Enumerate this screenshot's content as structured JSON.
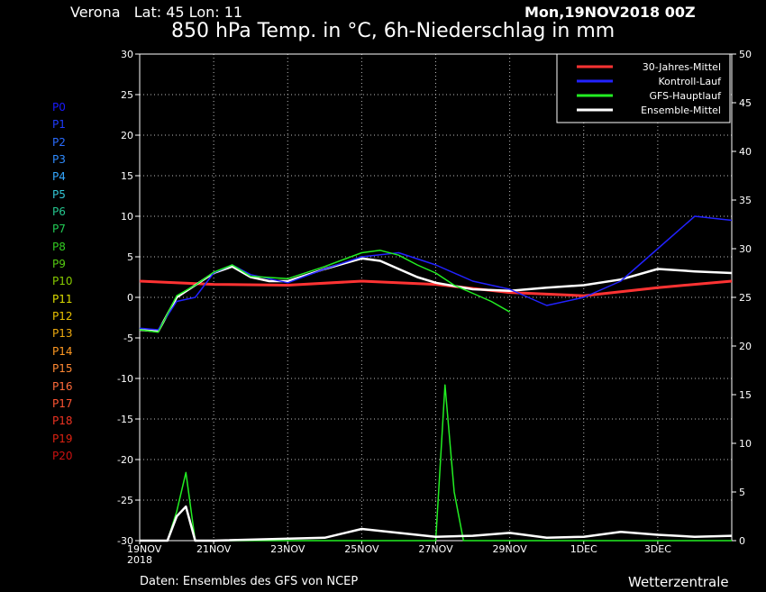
{
  "header": {
    "location": "Verona   Lat: 45 Lon: 11",
    "run_date": "Mon,19NOV2018 00Z",
    "title": "850 hPa Temp. in °C, 6h-Niederschlag in mm"
  },
  "footer": {
    "source": "Daten: Ensembles des GFS von NCEP",
    "brand": "Wetterzentrale"
  },
  "members": [
    {
      "label": "P0",
      "color": "#1a1aff"
    },
    {
      "label": "P1",
      "color": "#1f3cff"
    },
    {
      "label": "P2",
      "color": "#2a6cff"
    },
    {
      "label": "P3",
      "color": "#2f8cff"
    },
    {
      "label": "P4",
      "color": "#35a8ff"
    },
    {
      "label": "P5",
      "color": "#33c8d8"
    },
    {
      "label": "P6",
      "color": "#25c890"
    },
    {
      "label": "P7",
      "color": "#22cc55"
    },
    {
      "label": "P8",
      "color": "#33cc22"
    },
    {
      "label": "P9",
      "color": "#55cc11"
    },
    {
      "label": "P10",
      "color": "#88cc00"
    },
    {
      "label": "P11",
      "color": "#dddd00"
    },
    {
      "label": "P12",
      "color": "#e8c000"
    },
    {
      "label": "P13",
      "color": "#eeaa10"
    },
    {
      "label": "P14",
      "color": "#ff9922"
    },
    {
      "label": "P15",
      "color": "#ff8833"
    },
    {
      "label": "P16",
      "color": "#ff6a3a"
    },
    {
      "label": "P17",
      "color": "#ff5533"
    },
    {
      "label": "P18",
      "color": "#ee3322"
    },
    {
      "label": "P19",
      "color": "#dd2211"
    },
    {
      "label": "P20",
      "color": "#cc1111"
    }
  ],
  "chart_data": {
    "type": "line",
    "x_tick_labels": [
      "19NOV\n2018",
      "21NOV",
      "23NOV",
      "25NOV",
      "27NOV",
      "29NOV",
      "1DEC",
      "3DEC"
    ],
    "x_tick_days": [
      0,
      2,
      4,
      6,
      8,
      10,
      12,
      14
    ],
    "xlim_days": [
      0,
      16
    ],
    "y_left": {
      "ylim": [
        -30,
        30
      ],
      "ticks": [
        -30,
        -25,
        -20,
        -15,
        -10,
        -5,
        0,
        5,
        10,
        15,
        20,
        25,
        30
      ]
    },
    "y_right": {
      "ylim": [
        0,
        50
      ],
      "ticks": [
        0,
        5,
        10,
        15,
        20,
        25,
        30,
        35,
        40,
        45,
        50
      ]
    },
    "grid": true,
    "legend_position": "top-right",
    "legend": [
      {
        "name": "30-Jahres-Mittel",
        "color": "#ff3333"
      },
      {
        "name": "Kontroll-Lauf",
        "color": "#2222ff"
      },
      {
        "name": "GFS-Hauptlauf",
        "color": "#22ee22"
      },
      {
        "name": "Ensemble-Mittel",
        "color": "#ffffff"
      }
    ],
    "series": [
      {
        "name": "30-Jahres-Mittel",
        "color": "#ff3333",
        "axis": "left",
        "x": [
          0,
          2,
          4,
          6,
          8,
          10,
          12,
          14,
          16
        ],
        "values": [
          2,
          1.6,
          1.5,
          2,
          1.6,
          0.6,
          0.2,
          1.2,
          2
        ]
      },
      {
        "name": "Ensemble-Mittel",
        "color": "#ffffff",
        "axis": "left",
        "x": [
          0,
          0.5,
          1,
          1.5,
          2,
          2.5,
          3,
          3.5,
          4,
          5,
          6,
          6.5,
          7,
          7.5,
          8,
          9,
          10,
          11,
          12,
          13,
          14,
          15,
          16
        ],
        "values": [
          -4,
          -4.2,
          0,
          1.5,
          3,
          3.8,
          2.5,
          2,
          2,
          3.5,
          4.8,
          4.5,
          3.5,
          2.5,
          1.8,
          1,
          0.8,
          1.2,
          1.5,
          2.2,
          3.5,
          3.2,
          3
        ]
      },
      {
        "name": "Kontroll-Lauf",
        "color": "#2222ff",
        "axis": "left",
        "x": [
          0,
          0.5,
          1,
          1.5,
          2,
          2.5,
          3,
          4,
          5,
          6,
          7,
          8,
          9,
          10,
          11,
          12,
          13,
          14,
          15,
          16
        ],
        "values": [
          -3.8,
          -4,
          -0.5,
          0,
          3,
          4,
          2.8,
          1.8,
          3.5,
          5,
          5.5,
          4,
          2,
          1,
          -1,
          0,
          2,
          6,
          10,
          9.5
        ]
      },
      {
        "name": "GFS-Hauptlauf",
        "color": "#22ee22",
        "axis": "left",
        "x": [
          0,
          0.5,
          1,
          1.5,
          2,
          2.5,
          3,
          4,
          5,
          6,
          6.5,
          7,
          7.5,
          8,
          8.5,
          9,
          9.5,
          10
        ],
        "values": [
          -4,
          -4.3,
          0.2,
          1.5,
          3.1,
          4,
          2.6,
          2.3,
          3.8,
          5.5,
          5.8,
          5.2,
          4,
          3,
          1.5,
          0.5,
          -0.5,
          -1.8
        ]
      },
      {
        "name": "GFS-Hauptlauf Niederschlag",
        "color": "#22ee22",
        "axis": "right",
        "x": [
          0,
          0.75,
          1,
          1.25,
          1.5,
          2,
          6,
          8,
          8.25,
          8.5,
          8.75,
          9,
          10,
          16
        ],
        "values": [
          0,
          0,
          3,
          7,
          0,
          0,
          0,
          0,
          16,
          5,
          0,
          0,
          0,
          0
        ]
      },
      {
        "name": "Ensemble-Mittel Niederschlag",
        "color": "#ffffff",
        "axis": "right",
        "x": [
          0,
          0.75,
          1,
          1.25,
          1.5,
          2,
          5,
          6,
          7,
          8,
          9,
          10,
          11,
          12,
          13,
          14,
          15,
          16
        ],
        "values": [
          0,
          0,
          2.5,
          3.5,
          0,
          0,
          0.3,
          1.2,
          0.8,
          0.4,
          0.5,
          0.8,
          0.3,
          0.4,
          0.9,
          0.6,
          0.4,
          0.5
        ]
      }
    ]
  }
}
